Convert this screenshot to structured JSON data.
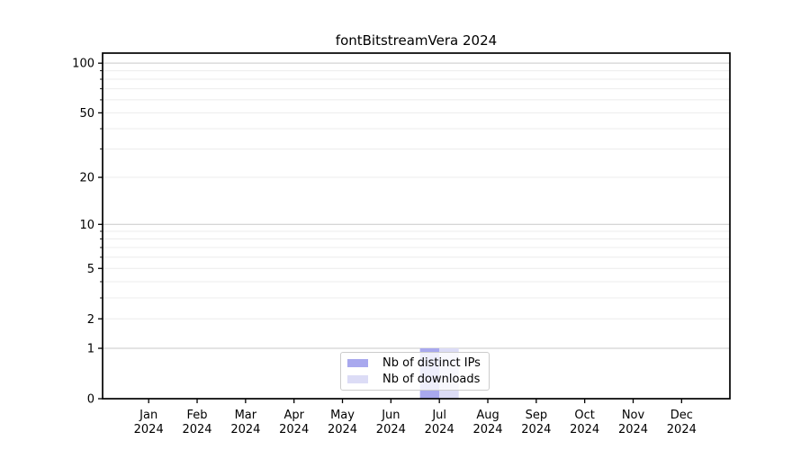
{
  "chart_data": {
    "type": "bar",
    "title": "fontBitstreamVera 2024",
    "categories": [
      "Jan",
      "Feb",
      "Mar",
      "Apr",
      "May",
      "Jun",
      "Jul",
      "Aug",
      "Sep",
      "Oct",
      "Nov",
      "Dec"
    ],
    "category_year": "2024",
    "series": [
      {
        "name": "Nb of distinct IPs",
        "color": "#a8a8ee",
        "values": [
          0,
          0,
          0,
          0,
          0,
          0,
          1,
          0,
          0,
          0,
          0,
          0
        ]
      },
      {
        "name": "Nb of downloads",
        "color": "#dcdcf6",
        "values": [
          0,
          0,
          0,
          0,
          0,
          0,
          1,
          0,
          0,
          0,
          0,
          0
        ]
      }
    ],
    "y_scale": "log1p",
    "y_axis_ticks": [
      0,
      1,
      2,
      5,
      10,
      20,
      50,
      100
    ],
    "y_minor_gridlines": [
      3,
      4,
      6,
      7,
      8,
      9,
      30,
      40,
      60,
      70,
      80,
      90
    ],
    "y_decade_gridlines": [
      1,
      10,
      100
    ],
    "y_max": 115,
    "ylim": [
      0,
      115
    ],
    "grid": "horizontal",
    "legend_position": "lower center",
    "colors": {
      "spine": "#000000",
      "grid_major": "#c9c9c9",
      "grid_minor": "#ececec",
      "background": "#ffffff"
    }
  }
}
